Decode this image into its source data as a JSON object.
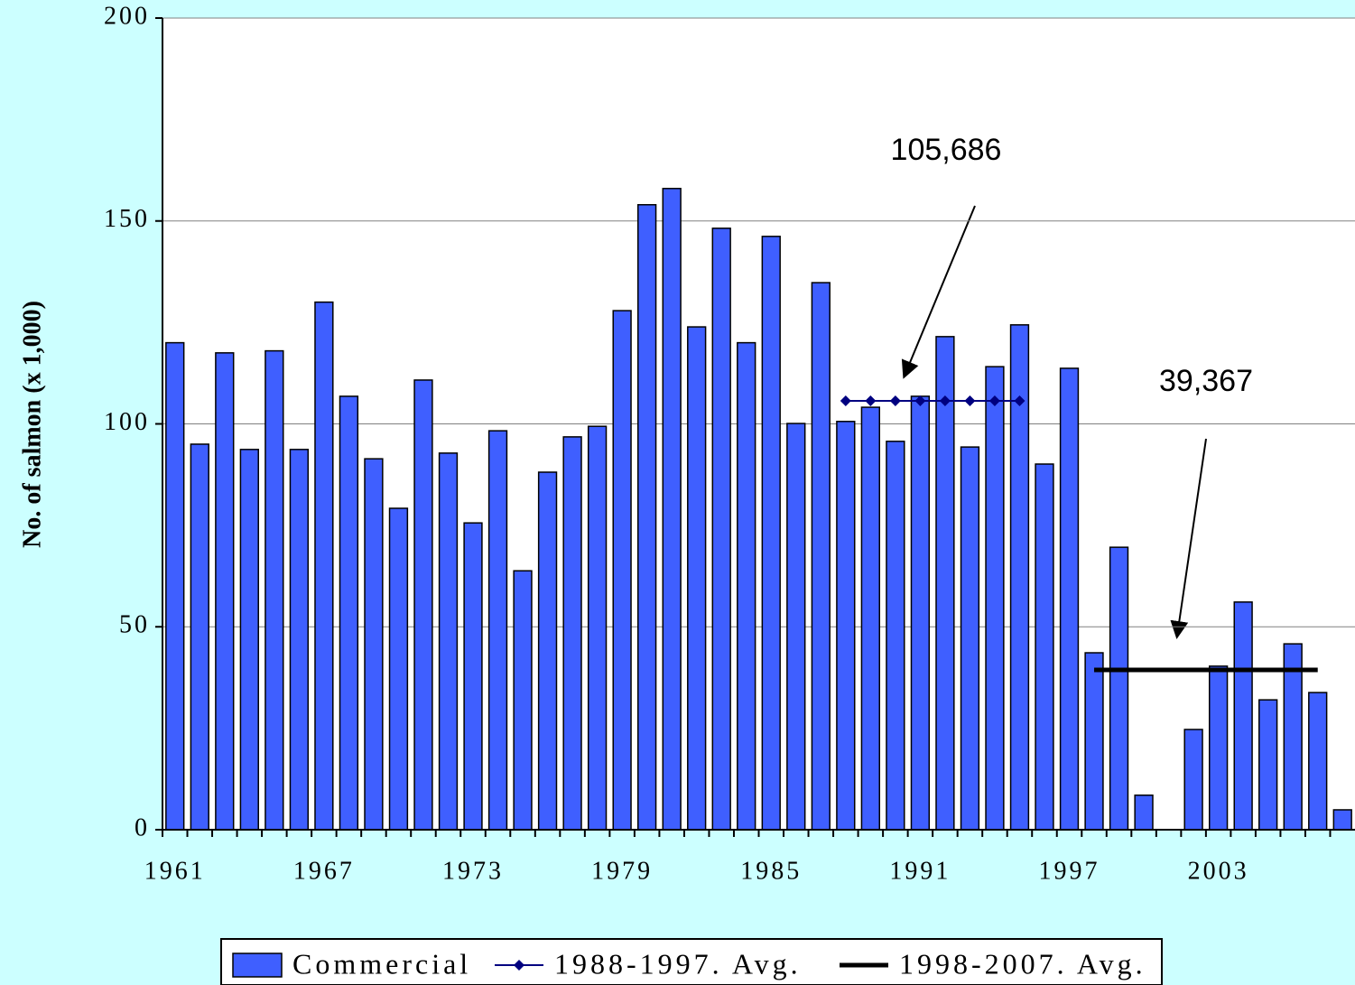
{
  "chart_data": {
    "type": "bar",
    "y_label": "No. of salmon (x 1,000)",
    "categories": [
      "1961",
      null,
      null,
      null,
      null,
      null,
      "1967",
      null,
      null,
      null,
      null,
      null,
      "1973",
      null,
      null,
      null,
      null,
      null,
      "1979",
      null,
      null,
      null,
      null,
      null,
      "1985",
      null,
      null,
      null,
      null,
      null,
      "1991",
      null,
      null,
      null,
      null,
      null,
      "1997",
      null,
      null,
      null,
      null,
      null,
      "2003",
      null,
      null,
      null,
      null,
      null
    ],
    "series": [
      {
        "name": "Commercial",
        "type": "bar",
        "color": "#3f5fff",
        "values": [
          120,
          95,
          117.5,
          93.7,
          118,
          93.7,
          130,
          106.8,
          91.4,
          79.2,
          110.8,
          92.8,
          75.6,
          98.3,
          63.8,
          88.1,
          96.8,
          99.4,
          127.9,
          154,
          158,
          123.9,
          148.2,
          120,
          146.2,
          100.1,
          134.8,
          100.6,
          104.1,
          95.7,
          106.8,
          121.5,
          94.3,
          114.1,
          124.4,
          90.1,
          113.7,
          43.6,
          69.6,
          8.5,
          null,
          24.7,
          40.3,
          56.1,
          32,
          45.8,
          33.8,
          4.9
        ]
      },
      {
        "name": "1988-1997. Avg.",
        "type": "line",
        "color": "#000080",
        "marker": "diamond",
        "values": [
          null,
          null,
          null,
          null,
          null,
          null,
          null,
          null,
          null,
          null,
          null,
          null,
          null,
          null,
          null,
          null,
          null,
          null,
          null,
          null,
          null,
          null,
          null,
          null,
          null,
          null,
          null,
          105.686,
          105.686,
          105.686,
          105.686,
          105.686,
          105.686,
          105.686,
          105.686,
          null,
          null,
          null,
          null,
          null,
          null,
          null,
          null,
          null,
          null,
          null,
          null,
          null
        ]
      },
      {
        "name": "1998-2007. Avg.",
        "type": "line",
        "color": "#000000",
        "values": [
          null,
          null,
          null,
          null,
          null,
          null,
          null,
          null,
          null,
          null,
          null,
          null,
          null,
          null,
          null,
          null,
          null,
          null,
          null,
          null,
          null,
          null,
          null,
          null,
          null,
          null,
          null,
          null,
          null,
          null,
          null,
          null,
          null,
          null,
          null,
          null,
          null,
          39.367,
          39.367,
          39.367,
          39.367,
          39.367,
          39.367,
          39.367,
          39.367,
          39.367,
          39.367,
          null
        ]
      }
    ],
    "annotations": [
      "105,686",
      "39,367"
    ],
    "ylim": [
      0,
      200
    ],
    "yticks": [
      0,
      50,
      100,
      150,
      200
    ],
    "grid": true,
    "legend": "bottom"
  }
}
